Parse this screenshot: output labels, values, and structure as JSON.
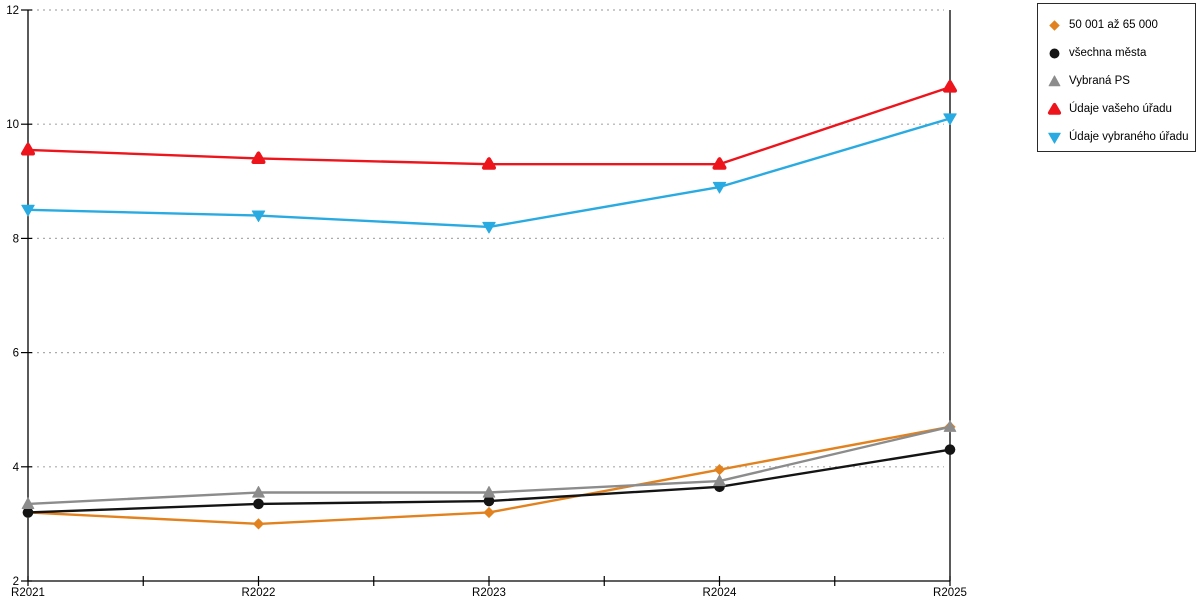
{
  "chart_data": {
    "type": "line",
    "categories": [
      "R2021",
      "R2022",
      "R2023",
      "R2024",
      "R2025"
    ],
    "series": [
      {
        "name": "50 001 až 65 000",
        "marker": "diamond",
        "color": "#E2821E",
        "values": [
          3.2,
          3.0,
          3.2,
          3.95,
          4.7
        ]
      },
      {
        "name": "všechna města",
        "marker": "circle",
        "color": "#141414",
        "values": [
          3.2,
          3.35,
          3.4,
          3.65,
          4.3
        ]
      },
      {
        "name": "Vybraná PS",
        "marker": "triangle-up",
        "color": "#8C8C8C",
        "values": [
          3.35,
          3.55,
          3.55,
          3.75,
          4.7
        ]
      },
      {
        "name": "Údaje vašeho úřadu",
        "marker": "triangle-up-round",
        "color": "#ED141C",
        "values": [
          9.55,
          9.4,
          9.3,
          9.3,
          10.65
        ]
      },
      {
        "name": "Údaje vybraného úřadu",
        "marker": "triangle-down",
        "color": "#29ABE2",
        "values": [
          8.5,
          8.4,
          8.2,
          8.9,
          10.1
        ]
      }
    ],
    "ylim": [
      2,
      12
    ],
    "yticks": [
      2,
      4,
      6,
      8,
      10,
      12
    ],
    "grid": true,
    "gridline_color": "#ABABAB",
    "axis_color": "#000000",
    "legend_position": "top-right"
  }
}
